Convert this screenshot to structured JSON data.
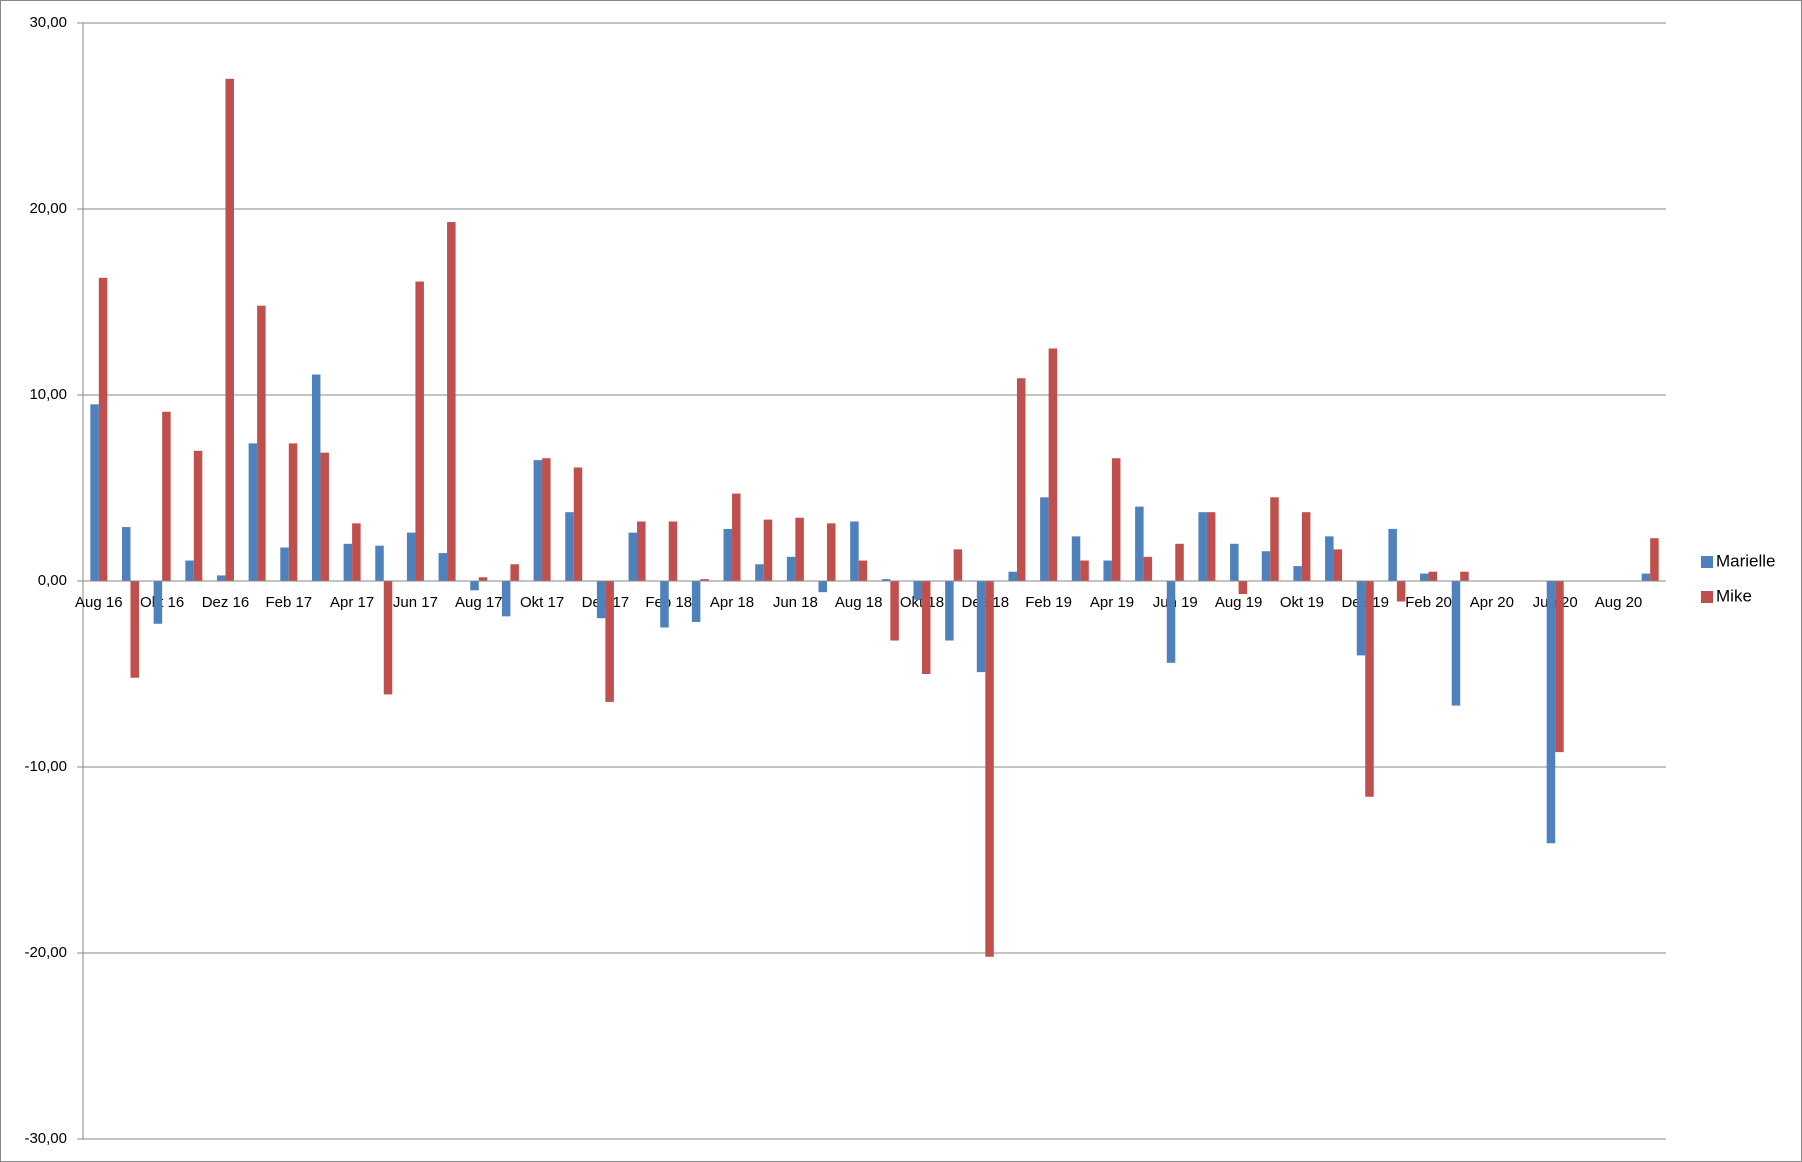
{
  "chart_data": {
    "type": "bar",
    "categories": [
      "Aug 16",
      null,
      "Okt 16",
      null,
      "Dez 16",
      null,
      "Feb 17",
      null,
      "Apr 17",
      null,
      "Jun 17",
      null,
      "Aug 17",
      null,
      "Okt 17",
      null,
      "Dez 17",
      null,
      "Feb 18",
      null,
      "Apr 18",
      null,
      "Jun 18",
      null,
      "Aug 18",
      null,
      "Okt 18",
      null,
      "Dez 18",
      null,
      "Feb 19",
      null,
      "Apr 19",
      null,
      "Jun 19",
      null,
      "Aug 19",
      null,
      "Okt 19",
      null,
      "Dez 19",
      null,
      "Feb 20",
      null,
      "Apr 20",
      null,
      "Jun 20",
      null,
      "Aug 20",
      null
    ],
    "series": [
      {
        "name": "Marielle",
        "color": "#4f81bd",
        "values": [
          9.5,
          2.9,
          -2.3,
          1.1,
          0.3,
          7.4,
          1.8,
          11.1,
          2.0,
          1.9,
          2.6,
          1.5,
          -0.5,
          -1.9,
          6.5,
          3.7,
          -2.0,
          2.6,
          -2.5,
          -2.2,
          2.8,
          0.9,
          1.3,
          -0.6,
          3.2,
          0.1,
          -1.0,
          -3.2,
          -4.9,
          0.5,
          4.5,
          2.4,
          1.1,
          4.0,
          -4.4,
          3.7,
          2.0,
          1.6,
          0.8,
          2.4,
          -4.0,
          2.8,
          0.4,
          -6.7,
          null,
          null,
          -14.1,
          null,
          null,
          0.4
        ]
      },
      {
        "name": "Mike",
        "color": "#c0504d",
        "values": [
          16.3,
          -5.2,
          9.1,
          7.0,
          27.0,
          14.8,
          7.4,
          6.9,
          3.1,
          -6.1,
          16.1,
          19.3,
          0.2,
          0.9,
          6.6,
          6.1,
          -6.5,
          3.2,
          3.2,
          0.1,
          4.7,
          3.3,
          3.4,
          3.1,
          1.1,
          -3.2,
          -5.0,
          1.7,
          -20.2,
          10.9,
          12.5,
          1.1,
          6.6,
          1.3,
          2.0,
          3.7,
          -0.7,
          4.5,
          3.7,
          1.7,
          -11.6,
          -1.1,
          0.5,
          0.5,
          null,
          null,
          -9.2,
          null,
          null,
          2.3
        ]
      }
    ],
    "ylim": [
      -30,
      30
    ],
    "yticks": [
      {
        "value": -30,
        "label": "-30,00"
      },
      {
        "value": -20,
        "label": "-20,00"
      },
      {
        "value": -10,
        "label": "-10,00"
      },
      {
        "value": 0,
        "label": "0,00"
      },
      {
        "value": 10,
        "label": "10,00"
      },
      {
        "value": 20,
        "label": "20,00"
      },
      {
        "value": 30,
        "label": "30,00"
      }
    ],
    "grid": true,
    "legend": "right"
  }
}
